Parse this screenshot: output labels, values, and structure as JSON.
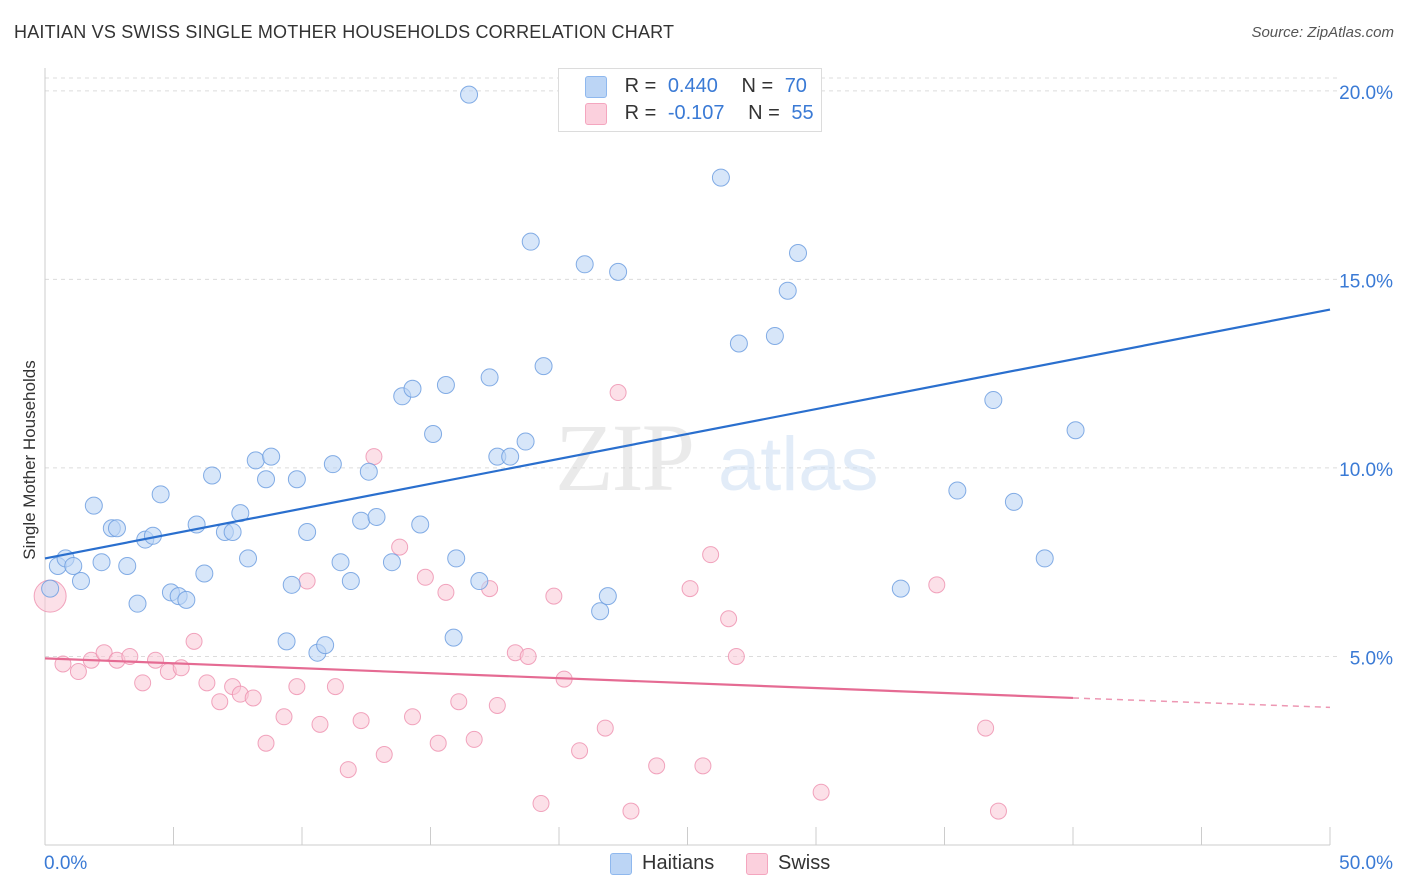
{
  "title": "HAITIAN VS SWISS SINGLE MOTHER HOUSEHOLDS CORRELATION CHART",
  "source": "Source: ZipAtlas.com",
  "watermark": {
    "zip": "ZIP",
    "atlas": "atlas"
  },
  "legend": {
    "haitians": {
      "r_label": "R =",
      "r_value": "0.440",
      "n_label": "N =",
      "n_value": "70"
    },
    "swiss": {
      "r_label": "R =",
      "r_value": "-0.107",
      "n_label": "N =",
      "n_value": "55"
    }
  },
  "bottom_legend": {
    "haitians": "Haitians",
    "swiss": "Swiss"
  },
  "colors": {
    "haitians": "#8fb8ee",
    "haitians_line": "#2a6fce",
    "swiss": "#f4a6bf",
    "swiss_line": "#e56b93",
    "tick_label": "#3a7ad5"
  },
  "chart_data": {
    "type": "scatter",
    "title": "HAITIAN VS SWISS SINGLE MOTHER HOUSEHOLDS CORRELATION CHART",
    "xlabel": "",
    "ylabel": "Single Mother Households",
    "xlim": [
      0,
      50
    ],
    "ylim": [
      0,
      20.5
    ],
    "x_tick_labels": [
      "0.0%",
      "50.0%"
    ],
    "y_ticks": [
      5,
      10,
      15,
      20
    ],
    "y_tick_labels": [
      "5.0%",
      "10.0%",
      "15.0%",
      "20.0%"
    ],
    "grid": true,
    "series": [
      {
        "name": "Haitians",
        "trend": {
          "x": [
            0,
            50
          ],
          "y": [
            7.6,
            14.2
          ]
        },
        "points": [
          [
            0.2,
            6.8
          ],
          [
            0.5,
            7.4
          ],
          [
            0.8,
            7.6
          ],
          [
            1.1,
            7.4
          ],
          [
            1.4,
            7.0
          ],
          [
            1.9,
            9.0
          ],
          [
            2.2,
            7.5
          ],
          [
            2.6,
            8.4
          ],
          [
            2.8,
            8.4
          ],
          [
            3.2,
            7.4
          ],
          [
            3.6,
            6.4
          ],
          [
            3.9,
            8.1
          ],
          [
            4.2,
            8.2
          ],
          [
            4.5,
            9.3
          ],
          [
            4.9,
            6.7
          ],
          [
            5.2,
            6.6
          ],
          [
            5.5,
            6.5
          ],
          [
            5.9,
            8.5
          ],
          [
            6.2,
            7.2
          ],
          [
            6.5,
            9.8
          ],
          [
            7.0,
            8.3
          ],
          [
            7.3,
            8.3
          ],
          [
            7.6,
            8.8
          ],
          [
            7.9,
            7.6
          ],
          [
            8.2,
            10.2
          ],
          [
            8.6,
            9.7
          ],
          [
            8.8,
            10.3
          ],
          [
            9.4,
            5.4
          ],
          [
            9.6,
            6.9
          ],
          [
            9.8,
            9.7
          ],
          [
            10.2,
            8.3
          ],
          [
            10.6,
            5.1
          ],
          [
            10.9,
            5.3
          ],
          [
            11.2,
            10.1
          ],
          [
            11.5,
            7.5
          ],
          [
            11.9,
            7.0
          ],
          [
            12.3,
            8.6
          ],
          [
            12.6,
            9.9
          ],
          [
            12.9,
            8.7
          ],
          [
            13.5,
            7.5
          ],
          [
            13.9,
            11.9
          ],
          [
            14.3,
            12.1
          ],
          [
            14.6,
            8.5
          ],
          [
            15.1,
            10.9
          ],
          [
            15.6,
            12.2
          ],
          [
            15.9,
            5.5
          ],
          [
            16.0,
            7.6
          ],
          [
            16.5,
            19.9
          ],
          [
            16.9,
            7.0
          ],
          [
            17.3,
            12.4
          ],
          [
            17.6,
            10.3
          ],
          [
            18.1,
            10.3
          ],
          [
            18.7,
            10.7
          ],
          [
            18.9,
            16.0
          ],
          [
            19.4,
            12.7
          ],
          [
            21.0,
            15.4
          ],
          [
            21.6,
            6.2
          ],
          [
            21.9,
            6.6
          ],
          [
            22.3,
            15.2
          ],
          [
            26.3,
            17.7
          ],
          [
            27.0,
            13.3
          ],
          [
            28.4,
            13.5
          ],
          [
            28.9,
            14.7
          ],
          [
            29.3,
            15.7
          ],
          [
            33.3,
            6.8
          ],
          [
            35.5,
            9.4
          ],
          [
            36.9,
            11.8
          ],
          [
            37.7,
            9.1
          ],
          [
            38.9,
            7.6
          ],
          [
            40.1,
            11.0
          ]
        ]
      },
      {
        "name": "Swiss",
        "trend": {
          "x": [
            0,
            40
          ],
          "y": [
            4.95,
            3.9
          ]
        },
        "trend_dashed": {
          "x": [
            40,
            50
          ],
          "y": [
            3.9,
            3.65
          ]
        },
        "points": [
          [
            0.2,
            6.6
          ],
          [
            0.7,
            4.8
          ],
          [
            1.3,
            4.6
          ],
          [
            1.8,
            4.9
          ],
          [
            2.3,
            5.1
          ],
          [
            2.8,
            4.9
          ],
          [
            3.3,
            5.0
          ],
          [
            3.8,
            4.3
          ],
          [
            4.3,
            4.9
          ],
          [
            4.8,
            4.6
          ],
          [
            5.3,
            4.7
          ],
          [
            5.8,
            5.4
          ],
          [
            6.3,
            4.3
          ],
          [
            6.8,
            3.8
          ],
          [
            7.3,
            4.2
          ],
          [
            7.6,
            4.0
          ],
          [
            8.1,
            3.9
          ],
          [
            8.6,
            2.7
          ],
          [
            9.3,
            3.4
          ],
          [
            9.8,
            4.2
          ],
          [
            10.2,
            7.0
          ],
          [
            10.7,
            3.2
          ],
          [
            11.3,
            4.2
          ],
          [
            11.8,
            2.0
          ],
          [
            12.3,
            3.3
          ],
          [
            12.8,
            10.3
          ],
          [
            13.2,
            2.4
          ],
          [
            13.8,
            7.9
          ],
          [
            14.3,
            3.4
          ],
          [
            14.8,
            7.1
          ],
          [
            15.3,
            2.7
          ],
          [
            15.6,
            6.7
          ],
          [
            16.1,
            3.8
          ],
          [
            16.7,
            2.8
          ],
          [
            17.3,
            6.8
          ],
          [
            17.6,
            3.7
          ],
          [
            18.3,
            5.1
          ],
          [
            18.8,
            5.0
          ],
          [
            19.3,
            1.1
          ],
          [
            19.8,
            6.6
          ],
          [
            20.2,
            4.4
          ],
          [
            20.8,
            2.5
          ],
          [
            21.8,
            3.1
          ],
          [
            22.3,
            12.0
          ],
          [
            22.8,
            0.9
          ],
          [
            23.8,
            2.1
          ],
          [
            25.1,
            6.8
          ],
          [
            25.6,
            2.1
          ],
          [
            25.9,
            7.7
          ],
          [
            26.6,
            6.0
          ],
          [
            26.9,
            5.0
          ],
          [
            30.2,
            1.4
          ],
          [
            34.7,
            6.9
          ],
          [
            36.6,
            3.1
          ],
          [
            37.1,
            0.9
          ]
        ]
      }
    ]
  }
}
